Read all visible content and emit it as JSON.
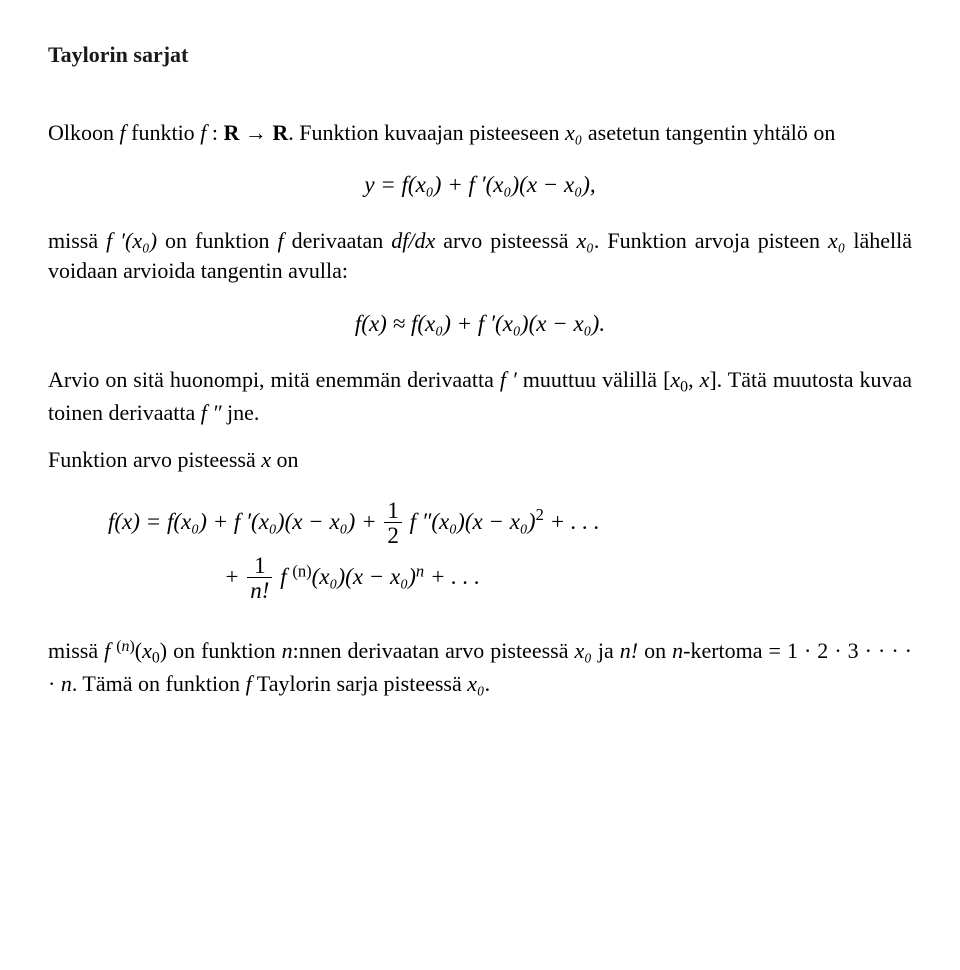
{
  "title": "Taylorin sarjat",
  "p1_a": "Olkoon ",
  "p1_b": " funktio ",
  "p1_c": ". Funktion kuvaajan pisteeseen ",
  "p1_d": " asetetun tangentin yhtälö on",
  "eq1": "y = f(x₀) + f ′(x₀)(x − x₀),",
  "p2_a": "missä ",
  "p2_b": " on funktion ",
  "p2_c": " derivaatan ",
  "p2_d": " arvo pisteessä ",
  "p2_e": ". Funktion arvoja pisteen ",
  "p2_f": " lähellä voidaan arvioida tangentin avulla:",
  "eq2": "f(x) ≈ f(x₀) + f ′(x₀)(x − x₀).",
  "p3_a": "Arvio on sitä huonompi, mitä enemmän derivaatta ",
  "p3_b": " muuttuu välillä ",
  "p3_c": ". Tätä muutosta kuvaa toinen derivaatta ",
  "p3_d": " jne.",
  "p4_a": "Funktion arvo pisteessä ",
  "p4_b": " on",
  "eq3_line1_a": "f(x) = f(x₀) + f ′(x₀)(x − x₀) + ",
  "eq3_line1_b": " f ″(x₀)(x − x₀)",
  "eq3_line1_c": " + . . .",
  "eq3_line2_a": "+ ",
  "eq3_line2_b": " f ",
  "eq3_line2_c": "(x₀)(x − x₀)",
  "eq3_line2_d": " + . . .",
  "p5_a": "missä ",
  "p5_b": " on funktion ",
  "p5_c": ":nnen derivaatan arvo pisteessä ",
  "p5_d": " ja ",
  "p5_e": " on ",
  "p5_f": "-kertoma = 1 · 2 · 3 · · · · · ",
  "p5_g": ". Tämä on funktion ",
  "p5_h": " Taylorin sarja pisteessä ",
  "p5_i": ".",
  "sym": {
    "f": "f",
    "fR": "f : R → R",
    "x0": "x₀",
    "fprime_x0": "f ′(x₀)",
    "dfdx": "df/dx",
    "fprime": "f ′",
    "fpp": "f ″",
    "interval": "[x₀, x]",
    "x": "x",
    "n": "n",
    "nfact": "n!",
    "fn_x0": "f ⁽ⁿ⁾(x₀)",
    "sup_n": "(n)",
    "sup_2": "2",
    "sup_np": "n",
    "frac_half_num": "1",
    "frac_half_den": "2",
    "frac_nf_num": "1",
    "frac_nf_den": "n!"
  }
}
